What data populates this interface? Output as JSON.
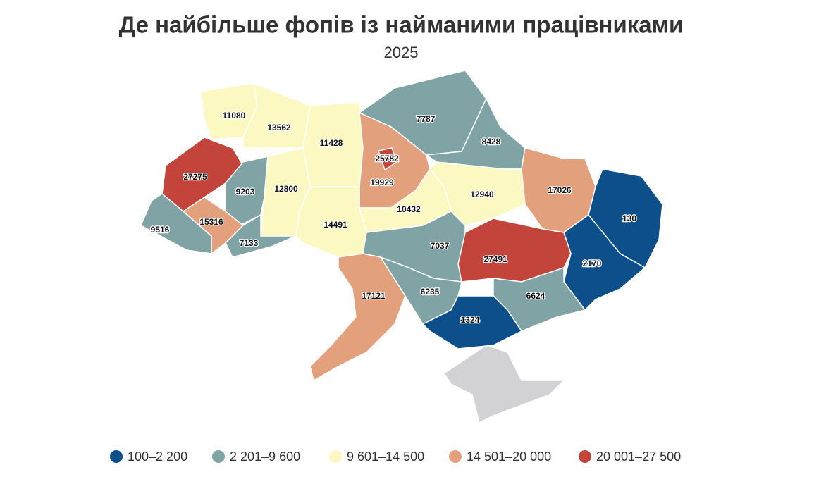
{
  "chart_data": {
    "type": "choropleth",
    "title": "Де найбільше фопів із найманими працівниками",
    "subtitle": "2025",
    "legend": [
      {
        "label": "100–2 200",
        "min": 100,
        "max": 2200,
        "color": "#0d4f8b"
      },
      {
        "label": "2 201–9 600",
        "min": 2201,
        "max": 9600,
        "color": "#80a4a6"
      },
      {
        "label": "9 601–14 500",
        "min": 9601,
        "max": 14500,
        "color": "#fcf8c2"
      },
      {
        "label": "14 501–20 000",
        "min": 14501,
        "max": 20000,
        "color": "#e2a07c"
      },
      {
        "label": "20 001–27 500",
        "min": 20001,
        "max": 27500,
        "color": "#c3443a"
      }
    ],
    "regions": [
      {
        "value": 11080
      },
      {
        "value": 13562
      },
      {
        "value": 11428
      },
      {
        "value": 19929
      },
      {
        "value": 25782
      },
      {
        "value": 7787
      },
      {
        "value": 8428
      },
      {
        "value": 27275
      },
      {
        "value": 9203
      },
      {
        "value": 12800
      },
      {
        "value": 9516
      },
      {
        "value": 15316
      },
      {
        "value": 7133
      },
      {
        "value": 14491
      },
      {
        "value": 10432
      },
      {
        "value": 12940
      },
      {
        "value": 17026
      },
      {
        "value": 130
      },
      {
        "value": 2170
      },
      {
        "value": 27491
      },
      {
        "value": 7037
      },
      {
        "value": 17121
      },
      {
        "value": 6235
      },
      {
        "value": 6624
      },
      {
        "value": 1324
      }
    ]
  }
}
